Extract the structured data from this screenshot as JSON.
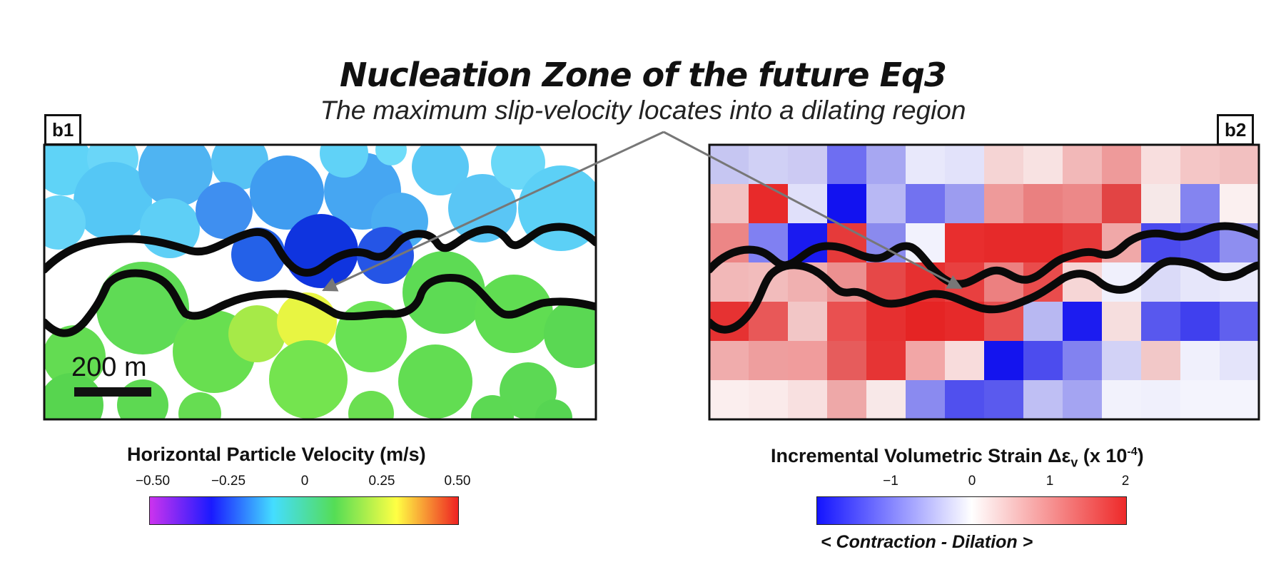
{
  "header": {
    "title": "Nucleation Zone of the future Eq3",
    "subtitle": "The maximum slip-velocity locates into a dilating region"
  },
  "panel_b1": {
    "tag": "b1",
    "scale_bar_label": "200 m",
    "colorbar": {
      "title": "Horizontal Particle Velocity (m/s)",
      "ticks": [
        "−0.50",
        "−0.25",
        "0",
        "0.25",
        "0.50"
      ],
      "colors": [
        "#cc33ee",
        "#1a1aff",
        "#44ddff",
        "#55dd55",
        "#ffff44",
        "#ee2222"
      ]
    }
  },
  "panel_b2": {
    "tag": "b2",
    "colorbar": {
      "title": "Incremental Volumetric Strain Δε",
      "title_subscript": "v",
      "title_suffix": " (x 10",
      "title_superscript": "-4",
      "title_close": ")",
      "ticks": [
        "−1",
        "0",
        "1",
        "2"
      ],
      "colors": [
        "#1414ff",
        "#ffffff",
        "#ee2a2a"
      ],
      "caption": "< Contraction - Dilation >"
    }
  }
}
